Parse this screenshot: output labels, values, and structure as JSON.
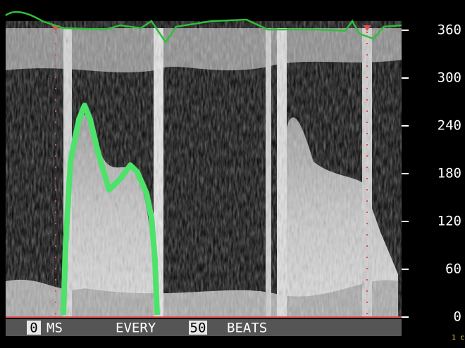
{
  "y_axis": {
    "ticks": [
      360,
      300,
      240,
      180,
      120,
      60,
      0
    ]
  },
  "footer": {
    "delay": "0",
    "delay_unit": "MS",
    "every": "EVERY",
    "count": "50",
    "count_unit": "BEATS"
  },
  "corner_note": "1 c"
}
